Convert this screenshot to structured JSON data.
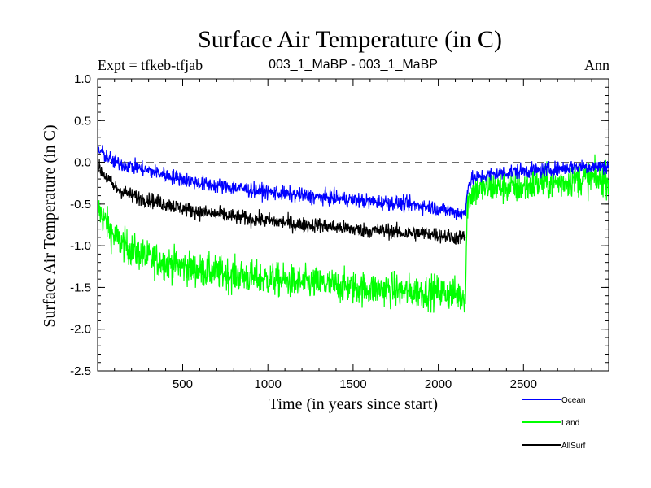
{
  "chart_data": {
    "type": "line",
    "title": "Surface Air Temperature (in C)",
    "experiment_label": "Expt = tfkeb-tfjab",
    "subtitle": "003_1_MaBP - 003_1_MaBP",
    "period_label": "Ann",
    "xlabel": "Time (in years since start)",
    "ylabel": "Surface Air Temperature (in C)",
    "xlim": [
      1,
      3000
    ],
    "ylim": [
      -2.5,
      1.0
    ],
    "xticks": [
      "500",
      "1000",
      "1500",
      "2000",
      "2500"
    ],
    "yticks": [
      "1.0",
      "0.5",
      "0.0",
      "-0.5",
      "-1.0",
      "-1.5",
      "-2.0",
      "-2.5"
    ],
    "reference_line": 0.0,
    "series": [
      {
        "name": "Land",
        "color": "#00ff00",
        "x": [
          1,
          100,
          200,
          300,
          400,
          500,
          600,
          700,
          800,
          900,
          1000,
          1100,
          1200,
          1300,
          1400,
          1500,
          1600,
          1700,
          1800,
          1900,
          2000,
          2100,
          2160,
          2170,
          2200,
          2300,
          2400,
          2500,
          2600,
          2700,
          2800,
          2900,
          3000
        ],
        "y": [
          -0.55,
          -0.9,
          -1.05,
          -1.15,
          -1.2,
          -1.25,
          -1.3,
          -1.32,
          -1.35,
          -1.38,
          -1.4,
          -1.42,
          -1.45,
          -1.45,
          -1.48,
          -1.5,
          -1.52,
          -1.52,
          -1.55,
          -1.55,
          -1.55,
          -1.58,
          -1.6,
          -0.5,
          -0.35,
          -0.3,
          -0.3,
          -0.3,
          -0.25,
          -0.25,
          -0.2,
          -0.2,
          -0.2
        ],
        "noise": 0.2
      },
      {
        "name": "AllSurf",
        "color": "#000000",
        "x": [
          1,
          100,
          200,
          300,
          400,
          500,
          600,
          700,
          800,
          900,
          1000,
          1100,
          1200,
          1300,
          1400,
          1500,
          1600,
          1700,
          1800,
          1900,
          2000,
          2100,
          2160
        ],
        "y": [
          -0.05,
          -0.3,
          -0.4,
          -0.45,
          -0.5,
          -0.55,
          -0.6,
          -0.62,
          -0.65,
          -0.68,
          -0.7,
          -0.72,
          -0.75,
          -0.75,
          -0.78,
          -0.8,
          -0.82,
          -0.82,
          -0.85,
          -0.85,
          -0.87,
          -0.9,
          -0.9
        ],
        "noise": 0.09
      },
      {
        "name": "Ocean",
        "color": "#0000ff",
        "x": [
          1,
          100,
          200,
          300,
          400,
          500,
          600,
          700,
          800,
          900,
          1000,
          1100,
          1200,
          1300,
          1400,
          1500,
          1600,
          1700,
          1800,
          1900,
          2000,
          2100,
          2160,
          2170,
          2200,
          2300,
          2400,
          2500,
          2600,
          2700,
          2800,
          2900,
          3000
        ],
        "y": [
          0.15,
          0.0,
          -0.05,
          -0.1,
          -0.15,
          -0.2,
          -0.25,
          -0.28,
          -0.3,
          -0.33,
          -0.35,
          -0.38,
          -0.4,
          -0.42,
          -0.43,
          -0.45,
          -0.47,
          -0.48,
          -0.5,
          -0.52,
          -0.55,
          -0.6,
          -0.62,
          -0.3,
          -0.2,
          -0.15,
          -0.12,
          -0.1,
          -0.1,
          -0.08,
          -0.05,
          -0.05,
          -0.05
        ],
        "noise": 0.09
      }
    ],
    "legend": {
      "placement": "bottom-right",
      "entries": [
        {
          "name": "Ocean",
          "color": "#0000ff"
        },
        {
          "name": "Land",
          "color": "#00ff00"
        },
        {
          "name": "AllSurf",
          "color": "#000000"
        }
      ]
    }
  }
}
